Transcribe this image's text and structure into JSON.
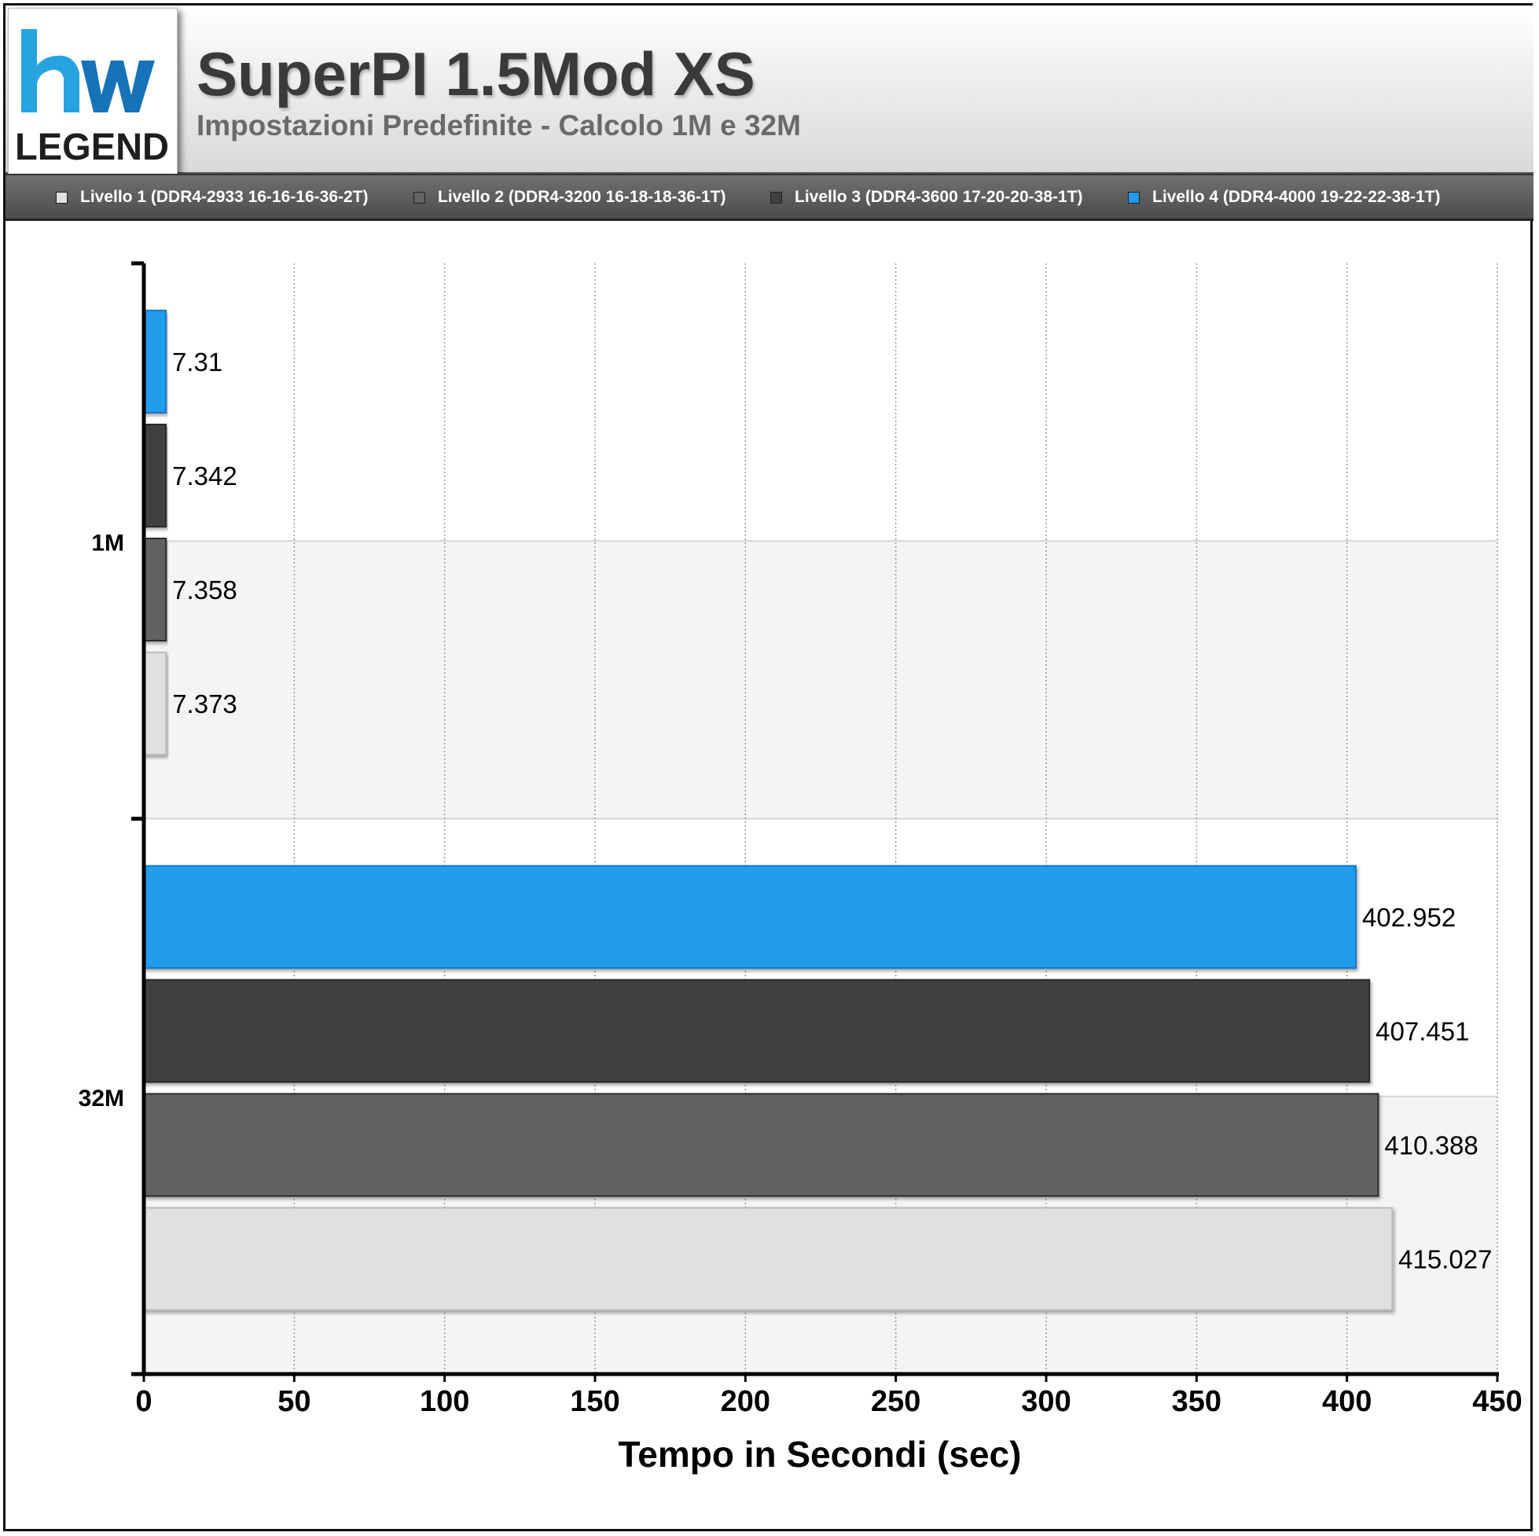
{
  "header": {
    "logo_text": "LEGEND",
    "title": "SuperPI 1.5Mod XS",
    "subtitle": "Impostazioni Predefinite - Calcolo 1M e 32M"
  },
  "legend": {
    "items": [
      {
        "label": "Livello 1 (DDR4-2933 16-16-16-36-2T)",
        "color": "#e0e0e0"
      },
      {
        "label": "Livello 2 (DDR4-3200 16-18-18-36-1T)",
        "color": "#626262"
      },
      {
        "label": "Livello 3 (DDR4-3600 17-20-20-38-1T)",
        "color": "#414141"
      },
      {
        "label": "Livello 4 (DDR4-4000 19-22-22-38-1T)",
        "color": "#209ced"
      }
    ]
  },
  "chart_data": {
    "type": "bar",
    "orientation": "horizontal",
    "categories": [
      "1M",
      "32M"
    ],
    "series": [
      {
        "name": "Livello 1 (DDR4-2933 16-16-16-36-2T)",
        "color": "#e0e0e0",
        "values": [
          7.373,
          415.027
        ],
        "labels": [
          "7.373",
          "415.027"
        ]
      },
      {
        "name": "Livello 2 (DDR4-3200 16-18-18-36-1T)",
        "color": "#626262",
        "values": [
          7.358,
          410.388
        ],
        "labels": [
          "7.358",
          "410.388"
        ]
      },
      {
        "name": "Livello 3 (DDR4-3600 17-20-20-38-1T)",
        "color": "#414141",
        "values": [
          7.342,
          407.451
        ],
        "labels": [
          "7.342",
          "407.451"
        ]
      },
      {
        "name": "Livello 4 (DDR4-4000 19-22-22-38-1T)",
        "color": "#209ced",
        "values": [
          7.31,
          402.952
        ],
        "labels": [
          "7.31",
          "402.952"
        ]
      }
    ],
    "xlabel": "Tempo in Secondi (sec)",
    "ylabel": "",
    "xlim": [
      0,
      450
    ],
    "xticks": [
      "0",
      "50",
      "100",
      "150",
      "200",
      "250",
      "300",
      "350",
      "400",
      "450"
    ],
    "grid": "vertical dotted",
    "legend_position": "top"
  }
}
